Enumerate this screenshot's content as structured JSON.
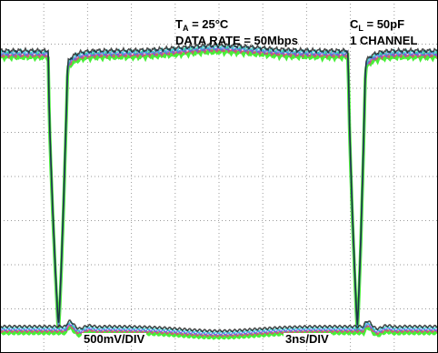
{
  "chart_data": {
    "type": "line",
    "title": "",
    "annotations": {
      "ta_symbol": "T",
      "ta_sub": "A",
      "ta_value": " = 25°C",
      "data_rate": "DATA RATE = 50Mbps",
      "cl_symbol": "C",
      "cl_sub": "L",
      "cl_value": " = 50pF",
      "channels": "1 CHANNEL"
    },
    "vertical_scale": "500mV/DIV",
    "horizontal_scale": "3ns/DIV",
    "grid": {
      "x_divisions": 10,
      "y_divisions": 8,
      "style": "dotted"
    },
    "trace_colors": [
      "#33ee22",
      "#ff2288",
      "#6655ff",
      "#22cccc",
      "#111111"
    ],
    "eye_diagram": {
      "time_units": "div",
      "voltage_units": "div",
      "high_level": 6.8,
      "low_level": 0.55,
      "x_range": [
        0,
        10
      ],
      "y_range": [
        0,
        8
      ],
      "transitions": [
        {
          "edge": "falling",
          "start": 1.1,
          "end": 1.55
        },
        {
          "edge": "falling",
          "start": 7.95,
          "end": 8.35
        }
      ]
    }
  }
}
